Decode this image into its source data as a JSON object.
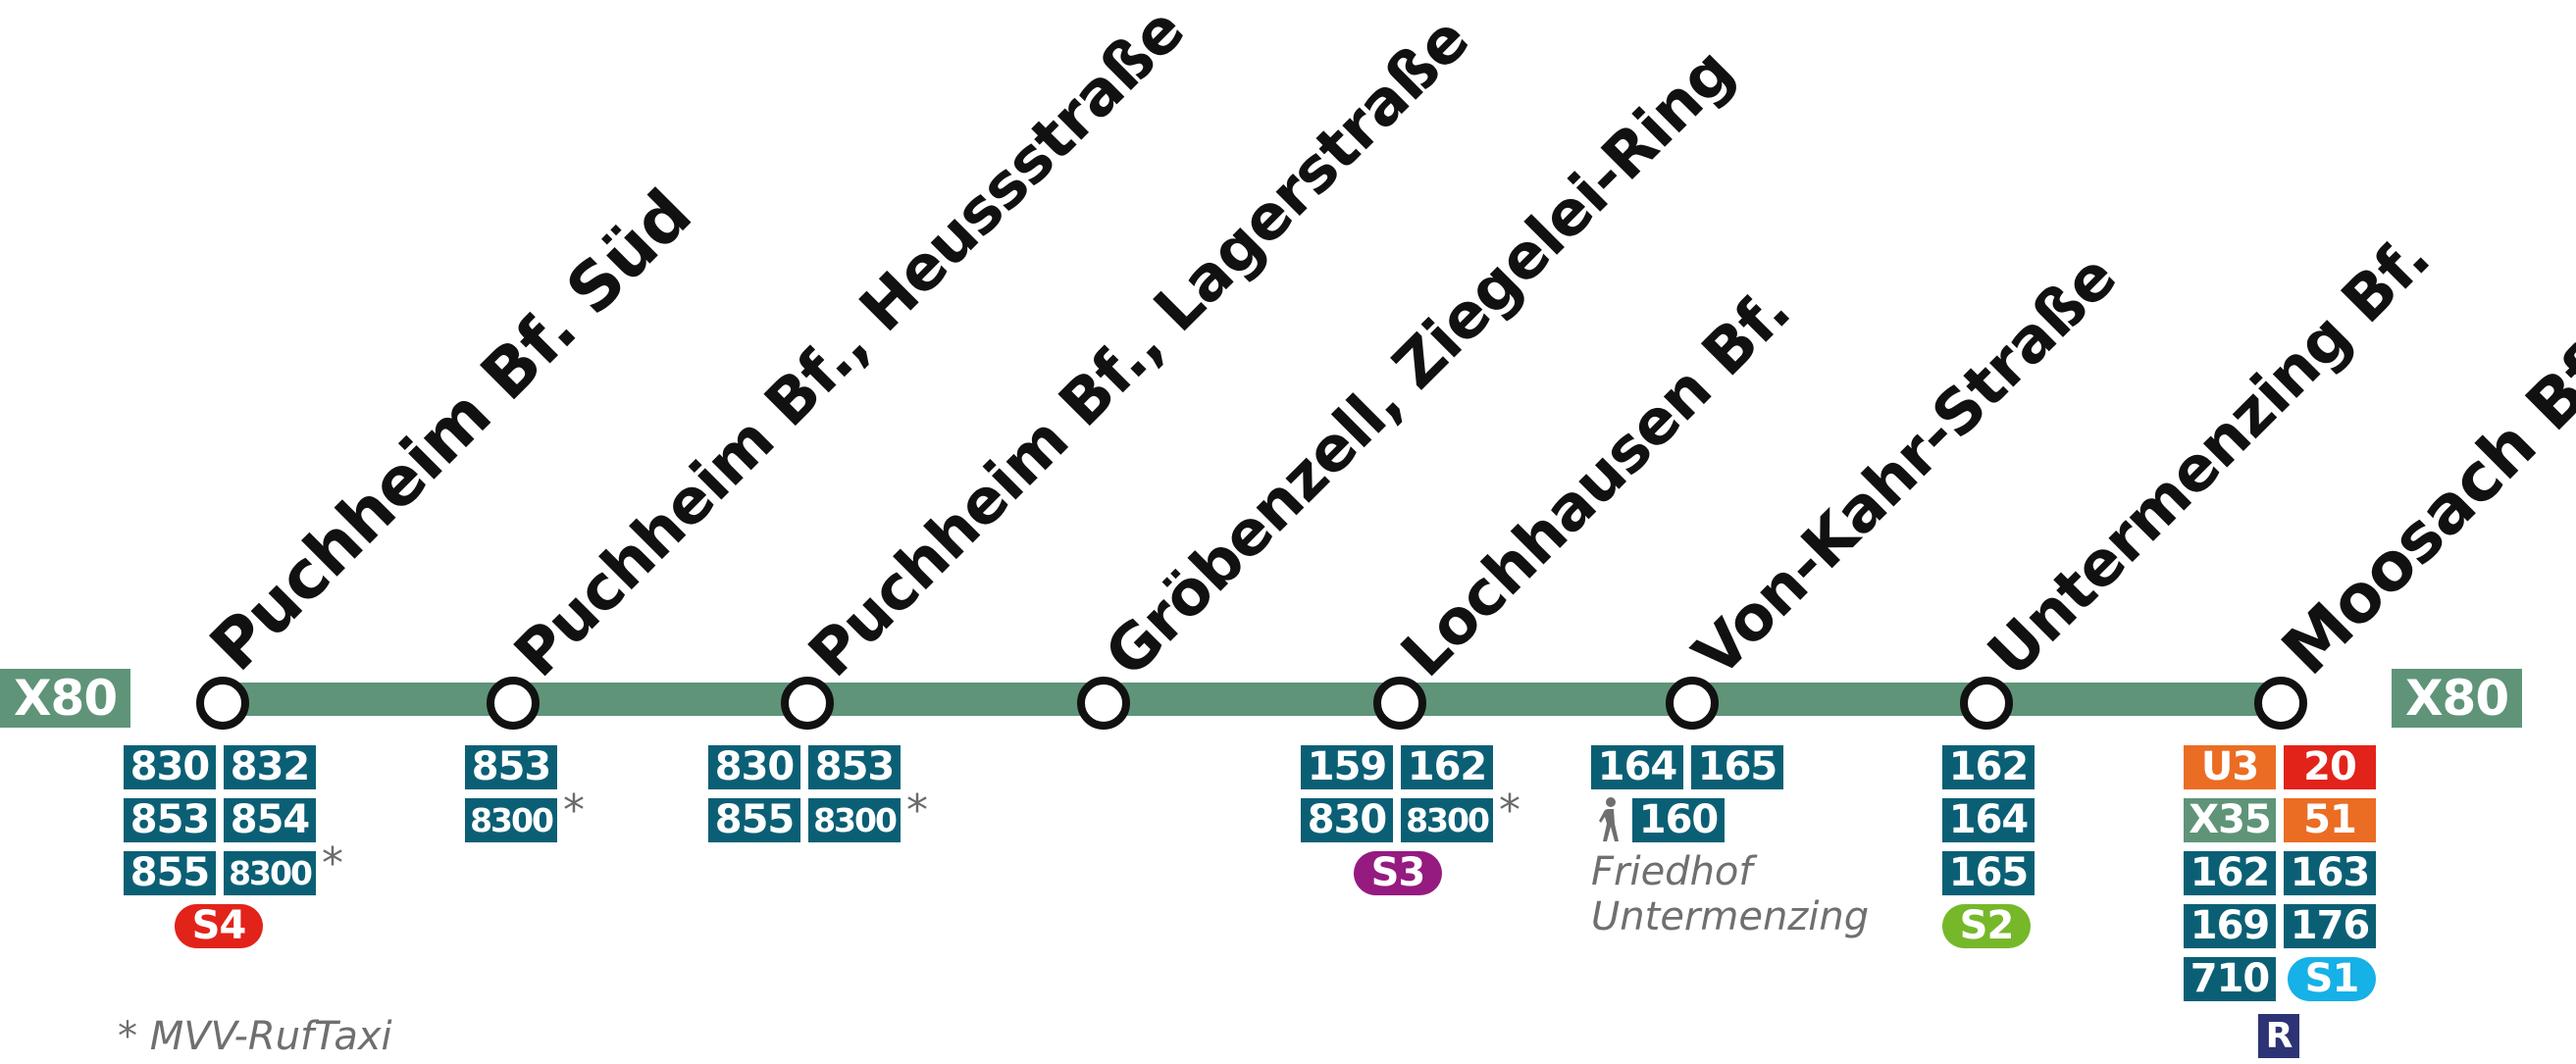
{
  "route": {
    "name": "X80",
    "line_color": "#5f9479"
  },
  "stops": [
    {
      "name": "Puchheim Bf. Süd",
      "terminus": true,
      "lines": [
        "830",
        "832",
        "853",
        "854",
        "855",
        "8300"
      ],
      "rail": [
        "S4"
      ]
    },
    {
      "name": "Puchheim Bf., Heussstraße",
      "terminus": false,
      "lines": [
        "853",
        "8300"
      ],
      "rail": []
    },
    {
      "name": "Puchheim Bf., Lagerstraße",
      "terminus": false,
      "lines": [
        "830",
        "853",
        "855",
        "8300"
      ],
      "rail": []
    },
    {
      "name": "Gröbenzell, Ziegelei-Ring",
      "terminus": false,
      "lines": [],
      "rail": []
    },
    {
      "name": "Lochhausen Bf.",
      "terminus": false,
      "lines": [
        "159",
        "162",
        "830",
        "8300"
      ],
      "rail": [
        "S3"
      ]
    },
    {
      "name": "Von-Kahr-Straße",
      "terminus": false,
      "lines": [
        "164",
        "165"
      ],
      "walk_line": "160",
      "walk_note": [
        "Friedhof",
        "Untermenzing"
      ],
      "rail": []
    },
    {
      "name": "Untermenzing Bf.",
      "terminus": false,
      "lines": [
        "162",
        "164",
        "165"
      ],
      "rail": [
        "S2"
      ]
    },
    {
      "name": "Moosach Bf.",
      "terminus": true,
      "lines": [
        "U3",
        "20",
        "X35",
        "51",
        "162",
        "163",
        "169",
        "176",
        "710"
      ],
      "rail": [
        "S1",
        "R"
      ]
    }
  ],
  "colors": {
    "bus": "#0b5f75",
    "ubahn_u3": "#ea6d23",
    "tram_20": "#e2231a",
    "tram_51": "#ea6d23",
    "express_x35": "#5f9479",
    "s1": "#16b1e6",
    "s2": "#76b82a",
    "s3": "#951b81",
    "s4": "#e2231a",
    "regio": "#2d3375"
  },
  "icons": [
    "walking-person-icon"
  ],
  "footnote": "* MVV-RufTaxi",
  "asterisk": "*"
}
